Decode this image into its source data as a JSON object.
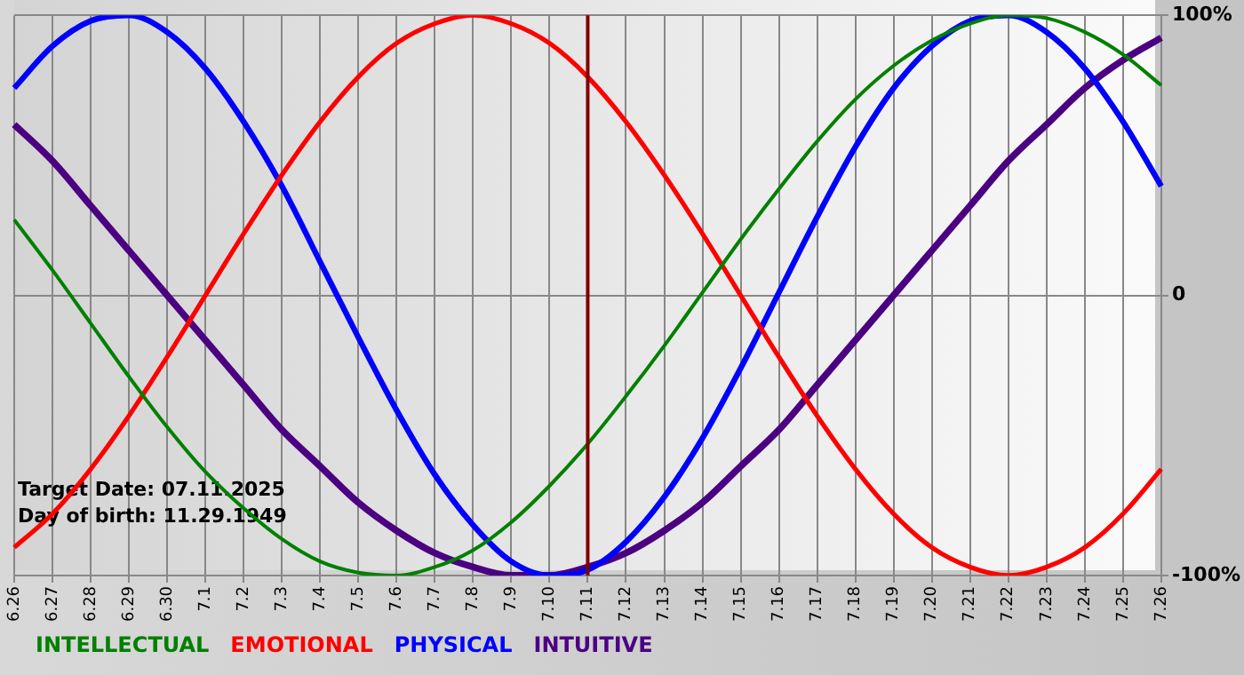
{
  "chart_data": {
    "type": "line",
    "categories": [
      "6.26",
      "6.27",
      "6.28",
      "6.29",
      "6.30",
      "7.1",
      "7.2",
      "7.3",
      "7.4",
      "7.5",
      "7.6",
      "7.7",
      "7.8",
      "7.9",
      "7.10",
      "7.11",
      "7.12",
      "7.13",
      "7.14",
      "7.15",
      "7.16",
      "7.17",
      "7.18",
      "7.19",
      "7.20",
      "7.21",
      "7.22",
      "7.23",
      "7.24",
      "7.25",
      "7.26"
    ],
    "series": [
      {
        "name": "INTELLECTUAL",
        "color": "#008000",
        "values": [
          27,
          9,
          -10,
          -29,
          -47,
          -63,
          -76,
          -87,
          -95,
          -99,
          -100,
          -97,
          -91,
          -81,
          -68,
          -53,
          -36,
          -18,
          1,
          20,
          38,
          55,
          70,
          82,
          91,
          97,
          100,
          99,
          94,
          86,
          75
        ]
      },
      {
        "name": "EMOTIONAL",
        "color": "#ff0000",
        "values": [
          -90,
          -78,
          -62,
          -43,
          -22,
          0,
          22,
          43,
          62,
          78,
          90,
          97,
          100,
          97,
          90,
          78,
          62,
          43,
          22,
          0,
          -22,
          -43,
          -62,
          -78,
          -90,
          -97,
          -100,
          -97,
          -90,
          -78,
          -62
        ]
      },
      {
        "name": "PHYSICAL",
        "color": "#0000ff",
        "values": [
          74,
          89,
          98,
          100,
          94,
          81,
          62,
          39,
          12,
          -15,
          -41,
          -64,
          -82,
          -95,
          -100,
          -98,
          -88,
          -72,
          -51,
          -26,
          1,
          28,
          53,
          74,
          89,
          98,
          100,
          94,
          81,
          62,
          39
        ]
      },
      {
        "name": "INTUITIVE",
        "color": "#4b0082",
        "values": [
          61,
          48,
          32,
          16,
          0,
          -16,
          -32,
          -48,
          -61,
          -74,
          -84,
          -92,
          -97,
          -100,
          -100,
          -97,
          -92,
          -84,
          -74,
          -61,
          -48,
          -32,
          -16,
          0,
          16,
          32,
          48,
          61,
          74,
          84,
          92
        ]
      }
    ],
    "ylim": [
      -100,
      100
    ],
    "yticks": [
      {
        "value": 100,
        "label": "100%"
      },
      0,
      {
        "value": -100,
        "label": "-100%"
      }
    ],
    "ref_lines": [
      {
        "axis": "x",
        "value": "7.11",
        "color": "#800000"
      }
    ],
    "annotations": [
      "Target Date: 07.11.2025",
      "Day of birth: 11.29.1949"
    ],
    "grid": true,
    "legend": "bottom left",
    "marker": "none",
    "line_style": "solid"
  }
}
